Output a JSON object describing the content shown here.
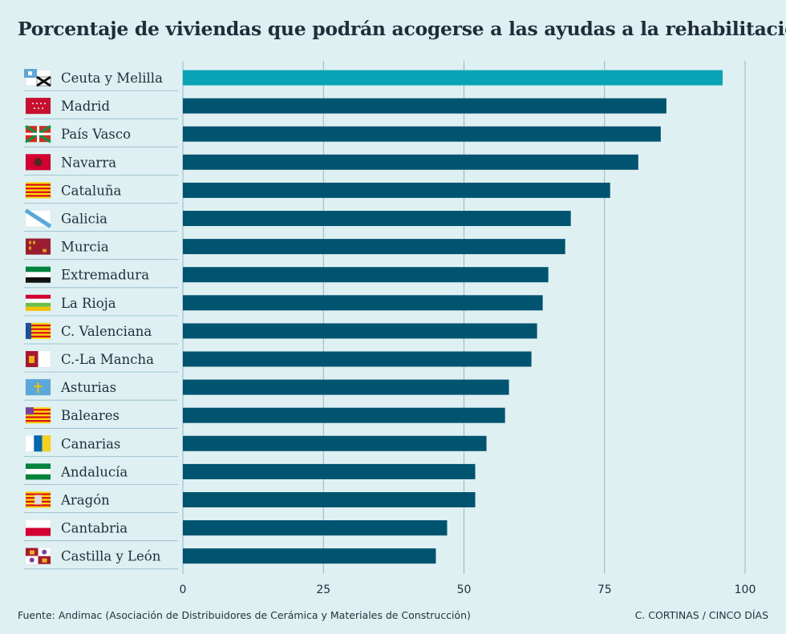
{
  "chart_data": {
    "type": "bar",
    "orientation": "horizontal",
    "title": "Porcentaje de viviendas que podrán acogerse a las ayudas a la rehabilitación",
    "categories": [
      "Ceuta y Melilla",
      "Madrid",
      "País Vasco",
      "Navarra",
      "Cataluña",
      "Galicia",
      "Murcia",
      "Extremadura",
      "La Rioja",
      "C. Valenciana",
      "C.-La Mancha",
      "Asturias",
      "Baleares",
      "Canarias",
      "Andalucía",
      "Aragón",
      "Cantabria",
      "Castilla y León"
    ],
    "values": [
      96,
      86,
      85,
      81,
      76,
      69,
      68,
      65,
      64,
      63,
      62,
      58,
      57.3,
      54,
      52,
      52,
      47,
      45
    ],
    "xlim": [
      0,
      100
    ],
    "xticks": [
      "0",
      "25",
      "50",
      "75",
      "100"
    ],
    "xtick_values": [
      0,
      25,
      50,
      75,
      100
    ],
    "grid": true,
    "colors": {
      "highlight": "#0aa3b5",
      "bar": "#005470",
      "grid": "#8fb8c6",
      "background": "#dff0f3"
    },
    "category_icons": [
      "flag-ceuta-melilla-icon",
      "flag-madrid-icon",
      "flag-pais-vasco-icon",
      "flag-navarra-icon",
      "flag-cataluna-icon",
      "flag-galicia-icon",
      "flag-murcia-icon",
      "flag-extremadura-icon",
      "flag-la-rioja-icon",
      "flag-c-valenciana-icon",
      "flag-c-la-mancha-icon",
      "flag-asturias-icon",
      "flag-baleares-icon",
      "flag-canarias-icon",
      "flag-andalucia-icon",
      "flag-aragon-icon",
      "flag-cantabria-icon",
      "flag-castilla-y-leon-icon"
    ]
  },
  "footer": {
    "source": "Fuente: Andimac (Asociación de Distribuidores de Cerámica y Materiales de Construcción)",
    "credit": "C. CORTINAS / CINCO DÍAS"
  }
}
